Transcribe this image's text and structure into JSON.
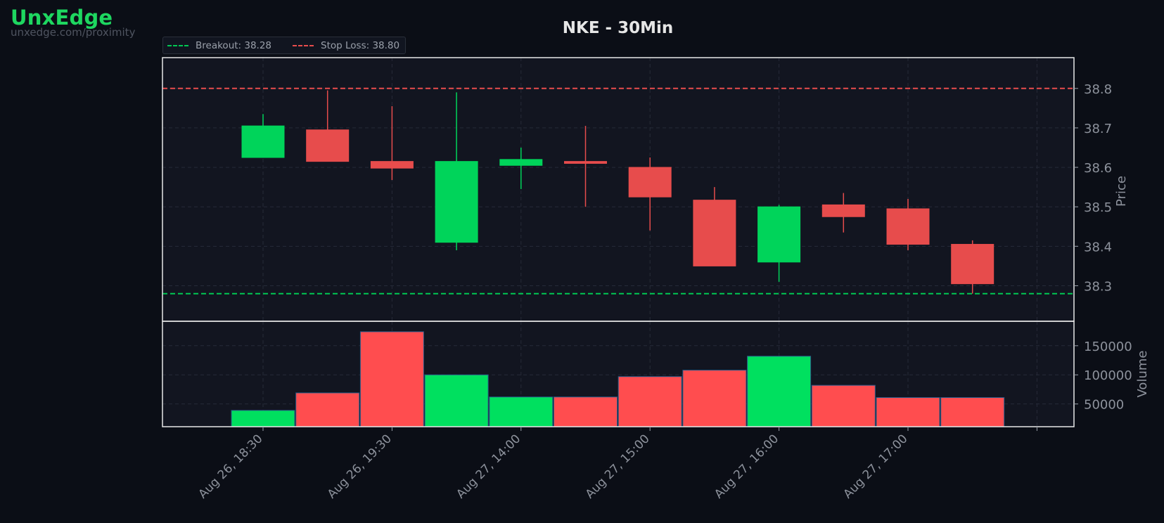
{
  "brand": {
    "name": "UnxEdge",
    "url": "unxedge.com/proximity"
  },
  "colors": {
    "background": "#0b0e16",
    "panel": "#121520",
    "up": "#00d45a",
    "down": "#e74c4c",
    "breakout": "#00c853",
    "stop": "#e84c4c",
    "volume_up": "#00e05f",
    "volume_down": "#ff4d4f"
  },
  "chart_data": {
    "type": "candlestick",
    "title": "NKE - 30Min",
    "x_ticks": [
      "Aug 26, 18:30",
      "Aug 26, 19:30",
      "Aug 27, 14:00",
      "Aug 27, 15:00",
      "Aug 27, 16:00",
      "Aug 27, 17:00"
    ],
    "price": {
      "ylabel": "Price",
      "yticks": [
        38.3,
        38.4,
        38.5,
        38.6,
        38.7,
        38.8
      ],
      "ylim": [
        38.21,
        38.878
      ],
      "candles": [
        {
          "open": 38.625,
          "high": 38.735,
          "low": 38.625,
          "close": 38.705
        },
        {
          "open": 38.695,
          "high": 38.795,
          "low": 38.615,
          "close": 38.615
        },
        {
          "open": 38.615,
          "high": 38.755,
          "low": 38.568,
          "close": 38.598
        },
        {
          "open": 38.41,
          "high": 38.79,
          "low": 38.39,
          "close": 38.615
        },
        {
          "open": 38.605,
          "high": 38.65,
          "low": 38.545,
          "close": 38.62
        },
        {
          "open": 38.615,
          "high": 38.705,
          "low": 38.5,
          "close": 38.61
        },
        {
          "open": 38.6,
          "high": 38.625,
          "low": 38.44,
          "close": 38.525
        },
        {
          "open": 38.517,
          "high": 38.55,
          "low": 38.35,
          "close": 38.35
        },
        {
          "open": 38.36,
          "high": 38.505,
          "low": 38.31,
          "close": 38.5
        },
        {
          "open": 38.505,
          "high": 38.535,
          "low": 38.435,
          "close": 38.475
        },
        {
          "open": 38.495,
          "high": 38.52,
          "low": 38.39,
          "close": 38.405
        },
        {
          "open": 38.405,
          "high": 38.415,
          "low": 38.28,
          "close": 38.305
        }
      ]
    },
    "levels": [
      {
        "name": "Breakout",
        "value": 38.28,
        "label": "Breakout: 38.28",
        "color": "#00c853"
      },
      {
        "name": "Stop Loss",
        "value": 38.8,
        "label": "Stop Loss: 38.80",
        "color": "#e84c4c"
      }
    ],
    "volume": {
      "ylabel": "Volume",
      "yticks": [
        50000,
        100000,
        150000
      ],
      "ylim": [
        11000,
        192000
      ],
      "values": [
        39000,
        69000,
        174000,
        100000,
        62000,
        62000,
        97000,
        108000,
        132000,
        82000,
        61000,
        61000
      ]
    }
  }
}
